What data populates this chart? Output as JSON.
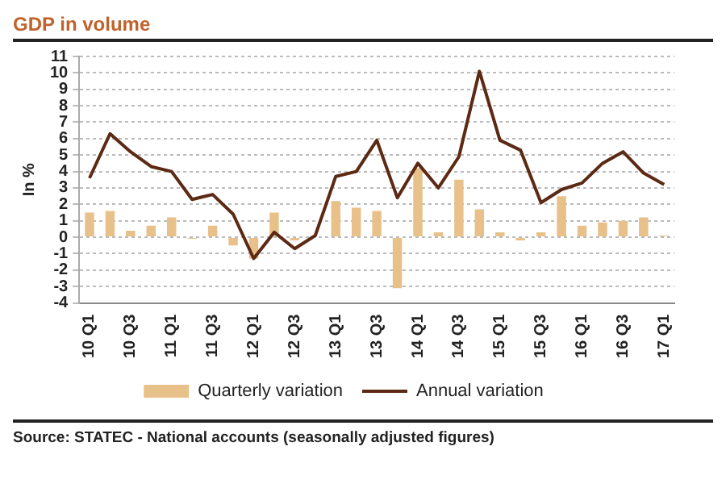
{
  "chart_data": {
    "type": "bar",
    "title": "GDP in volume",
    "ylabel": "In %",
    "categories": [
      "10 Q1",
      null,
      "10 Q3",
      null,
      "11 Q1",
      null,
      "11 Q3",
      null,
      "12 Q1",
      null,
      "12 Q3",
      null,
      "13 Q1",
      null,
      "13 Q3",
      null,
      "14 Q1",
      null,
      "14 Q3",
      null,
      "15 Q1",
      null,
      "15 Q3",
      null,
      "16 Q1",
      null,
      "16 Q3",
      null,
      "17 Q1"
    ],
    "series": [
      {
        "name": "Quarterly variation",
        "color": "#e8c08a",
        "values": [
          1.5,
          1.6,
          0.4,
          0.7,
          1.2,
          -0.1,
          0.7,
          -0.5,
          -1.3,
          1.5,
          -0.2,
          null,
          2.2,
          1.8,
          1.6,
          -3.1,
          4.2,
          0.3,
          3.5,
          1.7,
          0.3,
          -0.2,
          0.3,
          2.5,
          0.7,
          0.9,
          1.0,
          1.2,
          0.1
        ]
      },
      {
        "name": "Annual variation",
        "type": "line",
        "color": "#5c2a14",
        "values": [
          3.6,
          6.3,
          5.2,
          4.3,
          4.0,
          2.3,
          2.6,
          1.4,
          -1.3,
          0.3,
          -0.7,
          0.1,
          3.7,
          4.0,
          5.9,
          2.4,
          4.5,
          3.0,
          4.9,
          10.1,
          5.9,
          5.3,
          2.1,
          2.9,
          3.3,
          4.5,
          5.2,
          3.9,
          3.2
        ]
      }
    ],
    "ylim": [
      -4,
      11
    ],
    "yticks": [
      -4,
      -3,
      -2,
      -1,
      0,
      1,
      2,
      3,
      4,
      5,
      6,
      7,
      8,
      9,
      10,
      11
    ],
    "grid": "y",
    "legend": "bottom",
    "marker": "none",
    "line_style": "solid",
    "annotations": [
      "Source: STATEC - National accounts (seasonally adjusted figures)"
    ]
  }
}
